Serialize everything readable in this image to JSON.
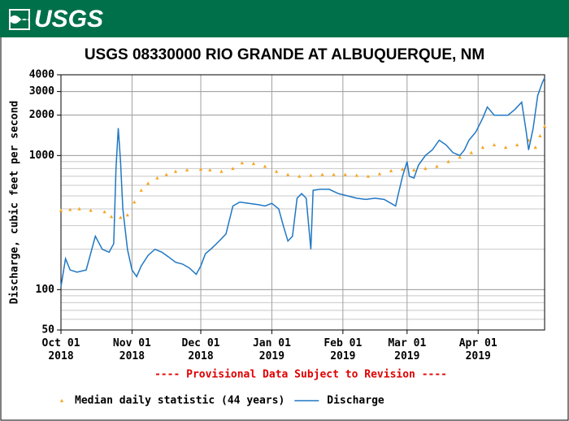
{
  "header": {
    "logo": "USGS"
  },
  "chart_data": {
    "type": "line",
    "title": "USGS 08330000 RIO GRANDE AT ALBUQUERQUE, NM",
    "y_label": "Discharge, cubic feet per second",
    "note": "---- Provisional Data Subject to Revision ----",
    "log_y": true,
    "grid": true,
    "xlim": [
      "2018-10-01",
      "2019-04-30"
    ],
    "xticks": [
      {
        "value": "2018-10-01",
        "label": "Oct 01\n2018"
      },
      {
        "value": "2018-11-01",
        "label": "Nov 01\n2018"
      },
      {
        "value": "2018-12-01",
        "label": "Dec 01\n2018"
      },
      {
        "value": "2019-01-01",
        "label": "Jan 01\n2019"
      },
      {
        "value": "2019-02-01",
        "label": "Feb 01\n2019"
      },
      {
        "value": "2019-03-01",
        "label": "Mar 01\n2019"
      },
      {
        "value": "2019-04-01",
        "label": "Apr 01\n2019"
      }
    ],
    "ylim": [
      50,
      4000
    ],
    "yticks": [
      50,
      100,
      1000,
      2000,
      3000,
      4000
    ],
    "series": [
      {
        "name": "Median daily statistic (44 years)",
        "color": "#f5a623",
        "style": "markers",
        "x": [
          "2018-10-01",
          "2018-10-05",
          "2018-10-09",
          "2018-10-14",
          "2018-10-20",
          "2018-10-23",
          "2018-10-27",
          "2018-10-30",
          "2018-11-02",
          "2018-11-05",
          "2018-11-08",
          "2018-11-12",
          "2018-11-16",
          "2018-11-20",
          "2018-11-25",
          "2018-12-01",
          "2018-12-05",
          "2018-12-10",
          "2018-12-15",
          "2018-12-19",
          "2018-12-24",
          "2018-12-29",
          "2019-01-03",
          "2019-01-08",
          "2019-01-13",
          "2019-01-18",
          "2019-01-23",
          "2019-01-28",
          "2019-02-02",
          "2019-02-07",
          "2019-02-12",
          "2019-02-17",
          "2019-02-22",
          "2019-02-27",
          "2019-03-04",
          "2019-03-09",
          "2019-03-14",
          "2019-03-19",
          "2019-03-24",
          "2019-03-29",
          "2019-04-03",
          "2019-04-08",
          "2019-04-13",
          "2019-04-18",
          "2019-04-23",
          "2019-04-26",
          "2019-04-28",
          "2019-04-30"
        ],
        "values": [
          390,
          395,
          400,
          390,
          380,
          350,
          345,
          360,
          450,
          550,
          620,
          680,
          720,
          760,
          780,
          790,
          780,
          760,
          800,
          880,
          870,
          830,
          760,
          720,
          700,
          710,
          720,
          720,
          720,
          710,
          700,
          730,
          770,
          790,
          780,
          800,
          830,
          900,
          970,
          1050,
          1150,
          1200,
          1150,
          1200,
          1300,
          1150,
          1400,
          1650
        ]
      },
      {
        "name": "Discharge",
        "color": "#1f77c4",
        "style": "line",
        "x": [
          "2018-10-01",
          "2018-10-03",
          "2018-10-05",
          "2018-10-08",
          "2018-10-12",
          "2018-10-16",
          "2018-10-19",
          "2018-10-22",
          "2018-10-24",
          "2018-10-25",
          "2018-10-26",
          "2018-10-27",
          "2018-10-28",
          "2018-10-30",
          "2018-11-01",
          "2018-11-03",
          "2018-11-05",
          "2018-11-08",
          "2018-11-11",
          "2018-11-14",
          "2018-11-17",
          "2018-11-20",
          "2018-11-23",
          "2018-11-26",
          "2018-11-29",
          "2018-12-01",
          "2018-12-03",
          "2018-12-06",
          "2018-12-09",
          "2018-12-12",
          "2018-12-15",
          "2018-12-18",
          "2018-12-22",
          "2018-12-26",
          "2018-12-29",
          "2019-01-01",
          "2019-01-04",
          "2019-01-06",
          "2019-01-08",
          "2019-01-10",
          "2019-01-12",
          "2019-01-14",
          "2019-01-16",
          "2019-01-18",
          "2019-01-19",
          "2019-01-22",
          "2019-01-26",
          "2019-01-30",
          "2019-02-03",
          "2019-02-07",
          "2019-02-11",
          "2019-02-15",
          "2019-02-19",
          "2019-02-22",
          "2019-02-24",
          "2019-02-25",
          "2019-02-27",
          "2019-03-01",
          "2019-03-02",
          "2019-03-04",
          "2019-03-06",
          "2019-03-09",
          "2019-03-12",
          "2019-03-15",
          "2019-03-18",
          "2019-03-21",
          "2019-03-24",
          "2019-03-26",
          "2019-03-28",
          "2019-03-31",
          "2019-04-03",
          "2019-04-05",
          "2019-04-08",
          "2019-04-11",
          "2019-04-14",
          "2019-04-17",
          "2019-04-20",
          "2019-04-22",
          "2019-04-23",
          "2019-04-25",
          "2019-04-27",
          "2019-04-29",
          "2019-04-30"
        ],
        "values": [
          105,
          170,
          140,
          135,
          140,
          250,
          200,
          190,
          220,
          800,
          1600,
          900,
          400,
          200,
          140,
          125,
          150,
          180,
          200,
          190,
          175,
          160,
          155,
          145,
          130,
          150,
          185,
          205,
          230,
          260,
          420,
          450,
          440,
          430,
          420,
          440,
          400,
          300,
          230,
          250,
          480,
          520,
          480,
          200,
          550,
          560,
          560,
          520,
          500,
          480,
          470,
          480,
          470,
          440,
          420,
          500,
          700,
          900,
          700,
          680,
          850,
          1000,
          1100,
          1300,
          1200,
          1050,
          1000,
          1100,
          1300,
          1500,
          1900,
          2300,
          2000,
          2000,
          2000,
          2200,
          2500,
          1500,
          1100,
          1600,
          2800,
          3500,
          3800
        ]
      }
    ]
  }
}
